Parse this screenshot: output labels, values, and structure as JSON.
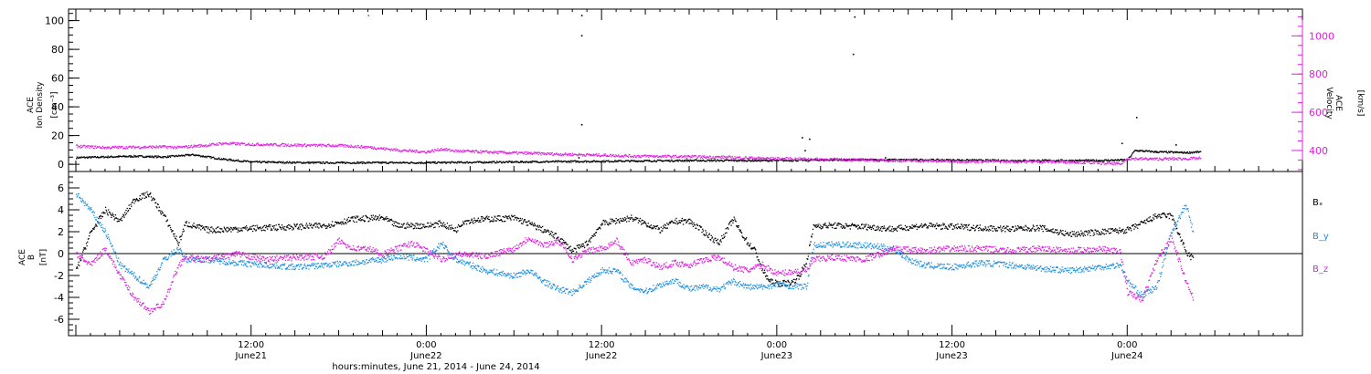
{
  "colors": {
    "black": "#000000",
    "magenta": "#e020e0",
    "blue": "#1e90e0"
  },
  "chart_data": [
    {
      "type": "scatter",
      "panel": "top",
      "left_axis": {
        "label_lines": [
          "ACE",
          "Ion Density"
        ],
        "unit": "[cm⁻³]",
        "ticks": [
          "0",
          "20",
          "40",
          "60",
          "80",
          "100"
        ],
        "ylim": [
          -5,
          108
        ]
      },
      "right_axis": {
        "label_lines": [
          "ACE",
          "Velocity"
        ],
        "unit": "[km/s]",
        "ticks": [
          "400",
          "600",
          "800",
          "1000"
        ],
        "ylim": [
          290,
          1140
        ],
        "color": "#e020e0"
      },
      "series": [
        {
          "name": "",
          "color": "#000000",
          "axis": "left",
          "points": [
            [
              0,
              5
            ],
            [
              2,
              5.5
            ],
            [
              4,
              6
            ],
            [
              6,
              5.5
            ],
            [
              8,
              7
            ],
            [
              10,
              4
            ],
            [
              12,
              2
            ],
            [
              16,
              1.5
            ],
            [
              24,
              1.5
            ],
            [
              30,
              2
            ],
            [
              36,
              2.5
            ],
            [
              42,
              3
            ],
            [
              48,
              3
            ],
            [
              52,
              3.5
            ],
            [
              58,
              3.5
            ],
            [
              64,
              3
            ],
            [
              70,
              3
            ],
            [
              72,
              3.5
            ],
            [
              72.5,
              10
            ],
            [
              74,
              9
            ],
            [
              76,
              8.5
            ],
            [
              77,
              9
            ]
          ],
          "spikes": [
            [
              18.2,
              1.5
            ],
            [
              34.6,
              104
            ],
            [
              34.6,
              90
            ],
            [
              34.6,
              28
            ],
            [
              34.4,
              5
            ],
            [
              49.7,
              19
            ],
            [
              49.9,
              10
            ],
            [
              50.2,
              18
            ],
            [
              53.3,
              103
            ],
            [
              53.2,
              77
            ],
            [
              55.4,
              5
            ],
            [
              71.6,
              15
            ],
            [
              72.6,
              33
            ],
            [
              75.3,
              14
            ]
          ]
        },
        {
          "name": "",
          "color": "#e020e0",
          "axis": "right",
          "points": [
            [
              0,
              425
            ],
            [
              2,
              418
            ],
            [
              4,
              420
            ],
            [
              6,
              422
            ],
            [
              7,
              418
            ],
            [
              8,
              425
            ],
            [
              9,
              430
            ],
            [
              10,
              440
            ],
            [
              12,
              435
            ],
            [
              16,
              430
            ],
            [
              18,
              428
            ],
            [
              19,
              425
            ],
            [
              20,
              420
            ],
            [
              22,
              405
            ],
            [
              24,
              395
            ],
            [
              25,
              410
            ],
            [
              26,
              400
            ],
            [
              30,
              390
            ],
            [
              34,
              382
            ],
            [
              36,
              378
            ],
            [
              38,
              374
            ],
            [
              42,
              370
            ],
            [
              44,
              368
            ],
            [
              48,
              360
            ],
            [
              52,
              356
            ],
            [
              56,
              350
            ],
            [
              60,
              346
            ],
            [
              64,
              345
            ],
            [
              68,
              343
            ],
            [
              70,
              338
            ],
            [
              71.5,
              332
            ],
            [
              72,
              360
            ],
            [
              74,
              358
            ],
            [
              76,
              360
            ],
            [
              77,
              362
            ]
          ],
          "spikes": [
            [
              20,
              1110
            ],
            [
              50.1,
              345
            ]
          ]
        }
      ]
    },
    {
      "type": "scatter",
      "panel": "bottom",
      "left_axis": {
        "label_lines": [
          "ACE",
          "B"
        ],
        "unit": "[nT]",
        "ticks": [
          "-6",
          "-4",
          "-2",
          "0",
          "2",
          "4",
          "6"
        ],
        "ylim": [
          -7.5,
          7.5
        ]
      },
      "legend": [
        "Bₓ",
        "B_y",
        "B_z"
      ],
      "series": [
        {
          "name": "Bₓ",
          "color": "#000000",
          "points": [
            [
              0,
              -1.5
            ],
            [
              1,
              2
            ],
            [
              2,
              4
            ],
            [
              3,
              3
            ],
            [
              4,
              5
            ],
            [
              5,
              5.5
            ],
            [
              6,
              3.5
            ],
            [
              7,
              1
            ],
            [
              7.5,
              2.8
            ],
            [
              9,
              2.2
            ],
            [
              11,
              2.3
            ],
            [
              13,
              2.4
            ],
            [
              15,
              2.5
            ],
            [
              17,
              2.6
            ],
            [
              19,
              3.2
            ],
            [
              21,
              3.3
            ],
            [
              22,
              2.6
            ],
            [
              24,
              2.6
            ],
            [
              25,
              2.8
            ],
            [
              26,
              2.2
            ],
            [
              26.5,
              3.0
            ],
            [
              28,
              3.2
            ],
            [
              30,
              3.3
            ],
            [
              31,
              2.8
            ],
            [
              32,
              2.2
            ],
            [
              33,
              1.5
            ],
            [
              34,
              0.3
            ],
            [
              35,
              1.0
            ],
            [
              36,
              2.8
            ],
            [
              38,
              3.3
            ],
            [
              39,
              2.8
            ],
            [
              40,
              2.2
            ],
            [
              41,
              3.0
            ],
            [
              42,
              3.0
            ],
            [
              43,
              2.0
            ],
            [
              44,
              1.0
            ],
            [
              45,
              3.2
            ],
            [
              45.5,
              2.0
            ],
            [
              46,
              1.0
            ],
            [
              46.5,
              0.3
            ],
            [
              47,
              -1.5
            ],
            [
              47.5,
              -2.5
            ],
            [
              48,
              -2.7
            ],
            [
              49,
              -2.6
            ],
            [
              49.5,
              -2.0
            ],
            [
              50,
              -0.8
            ],
            [
              50.5,
              2.6
            ],
            [
              52,
              2.6
            ],
            [
              54,
              2.5
            ],
            [
              56,
              2.3
            ],
            [
              58,
              2.6
            ],
            [
              60,
              2.5
            ],
            [
              62,
              2.4
            ],
            [
              64,
              2.3
            ],
            [
              66,
              2.4
            ],
            [
              68,
              1.8
            ],
            [
              70,
              2.0
            ],
            [
              72,
              2.2
            ],
            [
              73,
              2.8
            ],
            [
              74,
              3.5
            ],
            [
              75,
              3.5
            ],
            [
              76,
              0.2
            ],
            [
              76.5,
              -0.5
            ]
          ]
        },
        {
          "name": "B_y",
          "color": "#1e90e0",
          "points": [
            [
              0,
              5.5
            ],
            [
              1,
              4
            ],
            [
              2,
              2
            ],
            [
              3,
              -1
            ],
            [
              4,
              -2
            ],
            [
              5,
              -3
            ],
            [
              6,
              -0.5
            ],
            [
              7,
              0.5
            ],
            [
              7.5,
              -0.5
            ],
            [
              9,
              -0.5
            ],
            [
              11,
              -0.8
            ],
            [
              13,
              -1.0
            ],
            [
              15,
              -1.2
            ],
            [
              17,
              -1.0
            ],
            [
              19,
              -0.8
            ],
            [
              21,
              -0.5
            ],
            [
              22,
              -0.2
            ],
            [
              24,
              -0.5
            ],
            [
              25,
              1.0
            ],
            [
              26,
              -0.5
            ],
            [
              28,
              -1.5
            ],
            [
              30,
              -2.0
            ],
            [
              31,
              -1.5
            ],
            [
              32,
              -2.5
            ],
            [
              33,
              -3.2
            ],
            [
              34,
              -3.5
            ],
            [
              35,
              -2.5
            ],
            [
              36,
              -1.5
            ],
            [
              37,
              -1.5
            ],
            [
              38,
              -3.0
            ],
            [
              39,
              -3.4
            ],
            [
              40,
              -2.8
            ],
            [
              41,
              -2.4
            ],
            [
              42,
              -3.2
            ],
            [
              43,
              -3.0
            ],
            [
              44,
              -3.2
            ],
            [
              45,
              -2.5
            ],
            [
              46,
              -3.0
            ],
            [
              47,
              -3.0
            ],
            [
              48,
              -2.8
            ],
            [
              49,
              -2.9
            ],
            [
              50,
              -3.0
            ],
            [
              50.5,
              0.8
            ],
            [
              52,
              0.9
            ],
            [
              54,
              0.8
            ],
            [
              56,
              0.5
            ],
            [
              57,
              -0.5
            ],
            [
              58,
              -1.0
            ],
            [
              60,
              -1.2
            ],
            [
              62,
              -0.8
            ],
            [
              64,
              -1.0
            ],
            [
              66,
              -1.3
            ],
            [
              68,
              -1.5
            ],
            [
              70,
              -1.2
            ],
            [
              71.5,
              -1.0
            ],
            [
              72,
              -2.5
            ],
            [
              73,
              -3.8
            ],
            [
              74,
              -3.0
            ],
            [
              75,
              2.0
            ],
            [
              76,
              4.5
            ],
            [
              76.5,
              2.0
            ]
          ]
        },
        {
          "name": "B_z",
          "color": "#e020e0",
          "points": [
            [
              0,
              0
            ],
            [
              1,
              -1
            ],
            [
              2,
              0.5
            ],
            [
              3,
              -2
            ],
            [
              4,
              -4
            ],
            [
              5,
              -5.2
            ],
            [
              6,
              -4.5
            ],
            [
              7,
              -1
            ],
            [
              7.5,
              -0.3
            ],
            [
              9,
              -0.5
            ],
            [
              11,
              0
            ],
            [
              13,
              -0.5
            ],
            [
              15,
              -0.3
            ],
            [
              17,
              -0.2
            ],
            [
              18,
              1.2
            ],
            [
              19,
              0.5
            ],
            [
              20,
              0.5
            ],
            [
              21,
              0
            ],
            [
              22,
              0.5
            ],
            [
              23,
              1.0
            ],
            [
              24,
              0.3
            ],
            [
              25,
              -0.5
            ],
            [
              26,
              0.0
            ],
            [
              28,
              -0.2
            ],
            [
              30,
              0.5
            ],
            [
              31,
              1.5
            ],
            [
              32,
              0.8
            ],
            [
              33,
              1.2
            ],
            [
              34,
              -0.5
            ],
            [
              35,
              0.3
            ],
            [
              36,
              0.5
            ],
            [
              37,
              1.2
            ],
            [
              38,
              -0.8
            ],
            [
              39,
              -0.5
            ],
            [
              40,
              -1.2
            ],
            [
              41,
              -0.8
            ],
            [
              42,
              -1.0
            ],
            [
              43,
              -0.5
            ],
            [
              44,
              -0.3
            ],
            [
              45,
              -1.2
            ],
            [
              46,
              -1.5
            ],
            [
              47,
              -1.0
            ],
            [
              48,
              -1.8
            ],
            [
              49,
              -1.6
            ],
            [
              50,
              -1.5
            ],
            [
              50.5,
              -0.5
            ],
            [
              52,
              -0.3
            ],
            [
              54,
              -0.5
            ],
            [
              56,
              0.5
            ],
            [
              58,
              0.3
            ],
            [
              60,
              0.5
            ],
            [
              62,
              0.5
            ],
            [
              64,
              0.3
            ],
            [
              66,
              0.5
            ],
            [
              68,
              0.3
            ],
            [
              70,
              0.5
            ],
            [
              71.5,
              0.2
            ],
            [
              72,
              -3.5
            ],
            [
              73,
              -4.2
            ],
            [
              74,
              -0.5
            ],
            [
              75,
              1.5
            ],
            [
              76,
              -2.5
            ],
            [
              76.5,
              -4.0
            ]
          ]
        }
      ]
    }
  ],
  "x_axis": {
    "title": "hours:minutes, June 21, 2014 - June 24, 2014",
    "ticks": [
      {
        "hour": 12,
        "time": "12:00",
        "date": "June21"
      },
      {
        "hour": 24,
        "time": "0:00",
        "date": "June22"
      },
      {
        "hour": 36,
        "time": "12:00",
        "date": "June22"
      },
      {
        "hour": 48,
        "time": "0:00",
        "date": "June23"
      },
      {
        "hour": 60,
        "time": "12:00",
        "date": "June23"
      },
      {
        "hour": 72,
        "time": "0:00",
        "date": "June24"
      }
    ],
    "xlim": [
      -0.5,
      84.0
    ]
  }
}
